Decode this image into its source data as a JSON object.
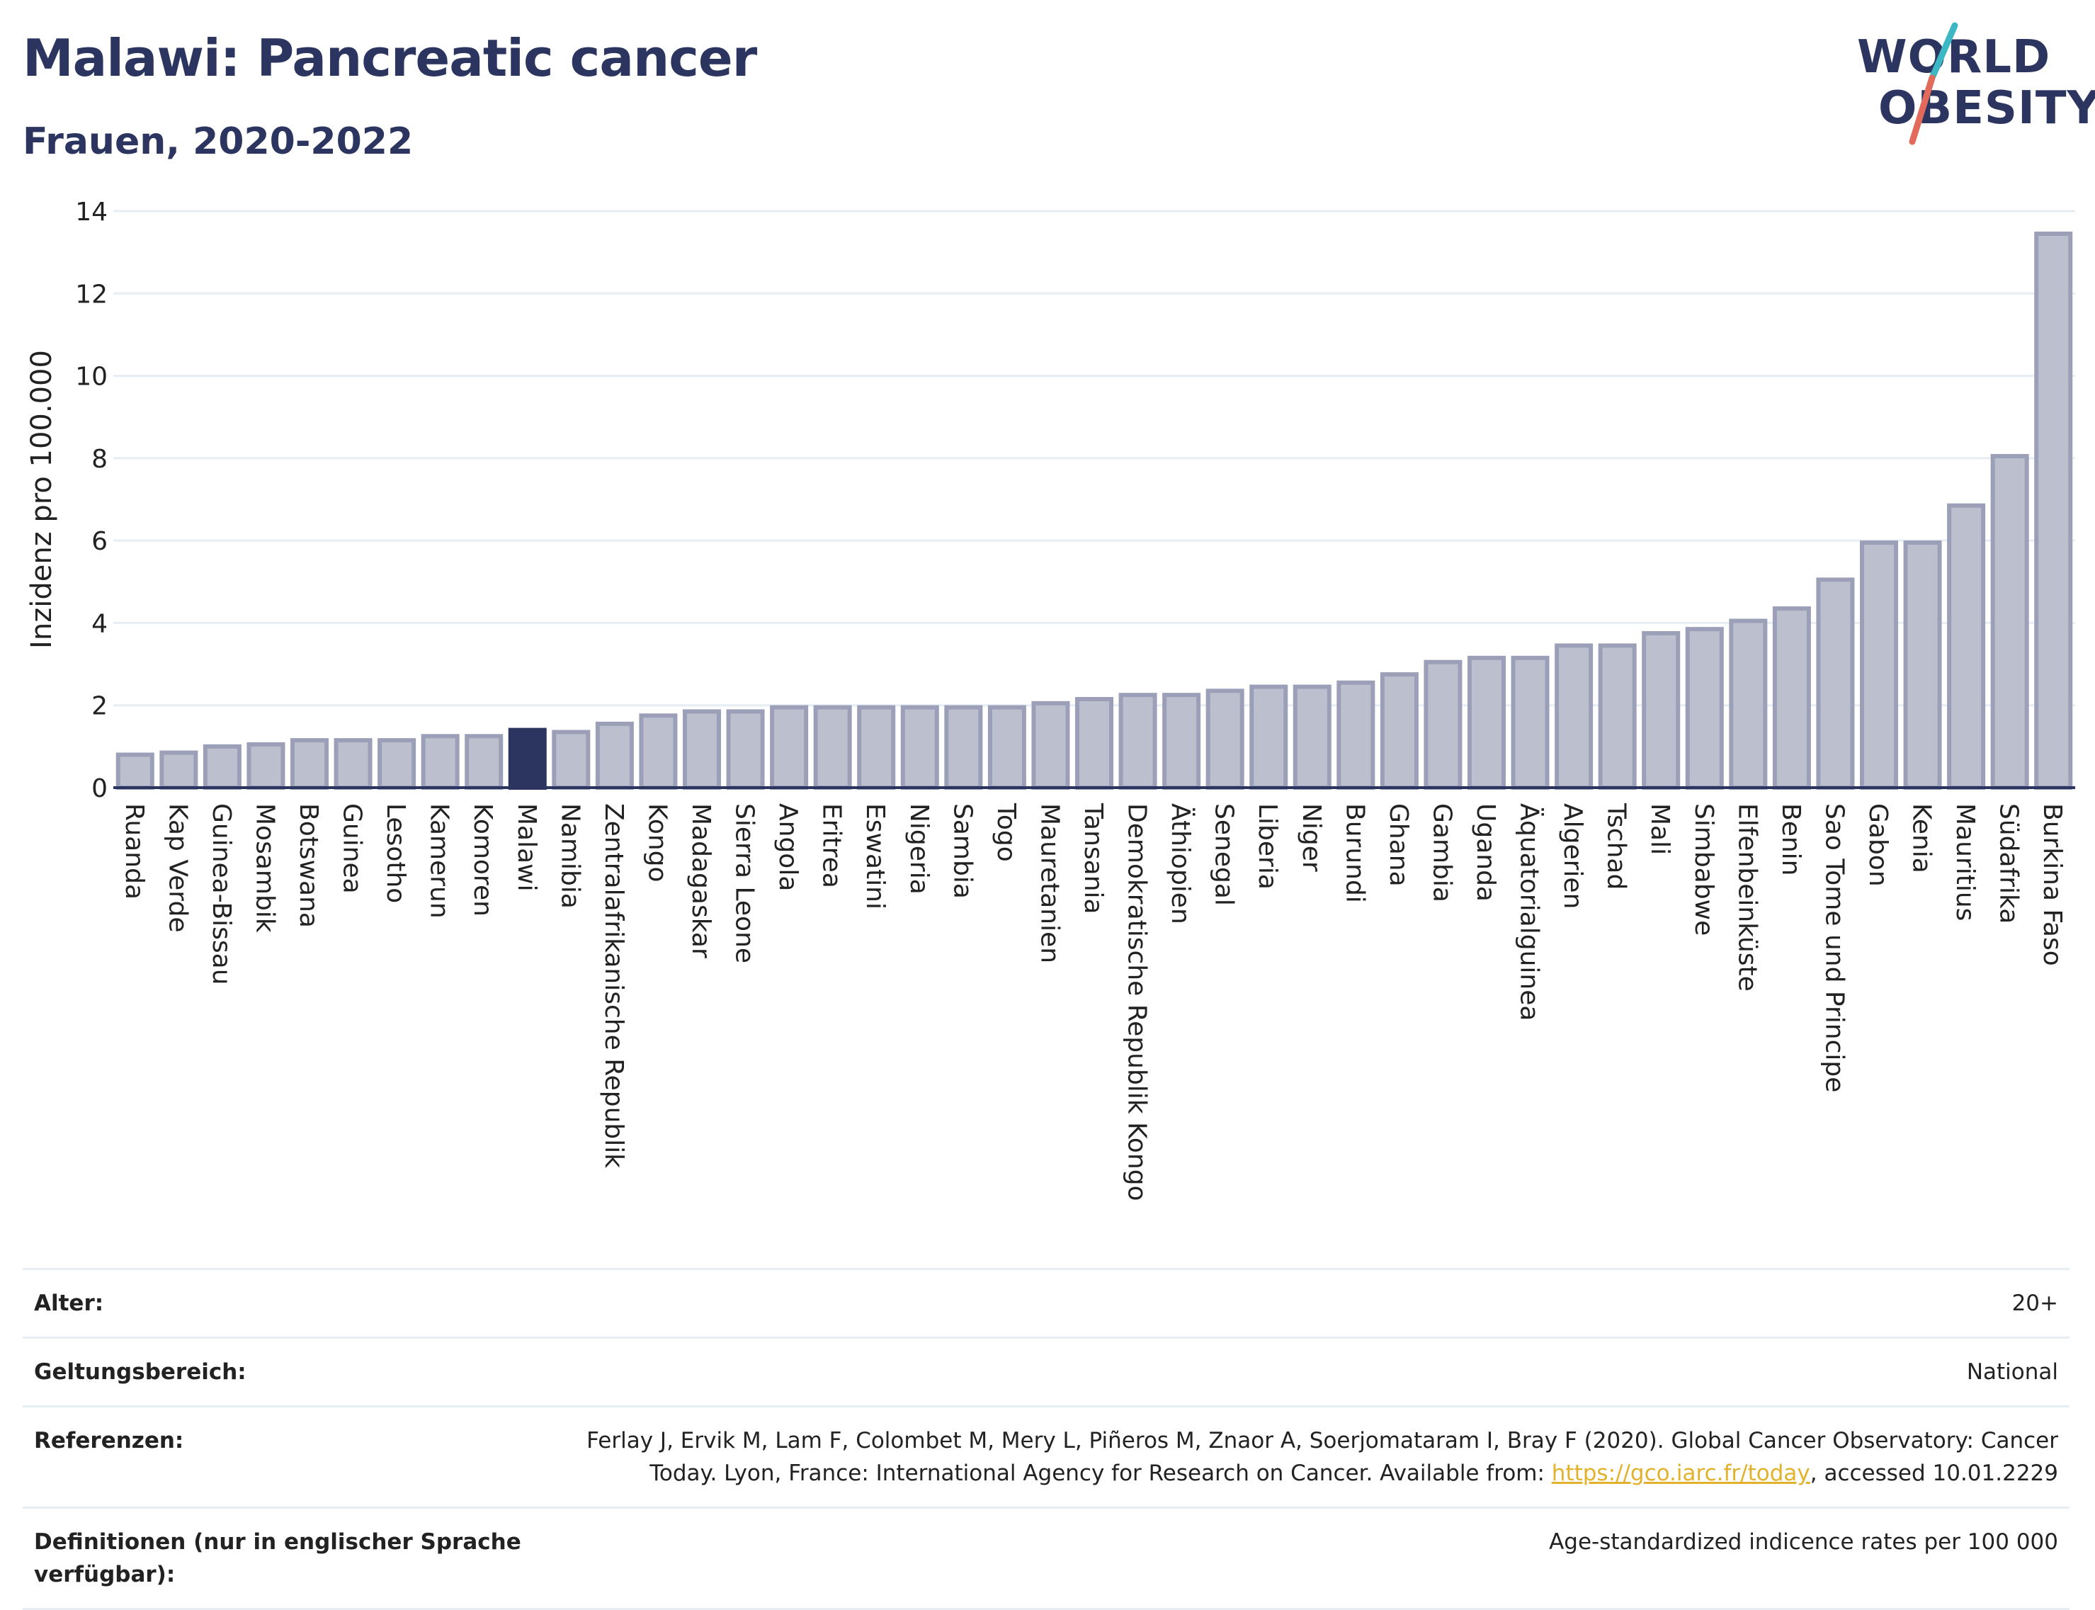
{
  "header": {
    "title": "Malawi: Pancreatic cancer",
    "subtitle": "Frauen, 2020-2022"
  },
  "logo": {
    "line1": "WORLD",
    "line2": "OBESITY"
  },
  "colors": {
    "bar": "#bcc0ce",
    "bar_border": "#9ba0b8",
    "highlight": "#2b3560",
    "grid": "#e6eef4"
  },
  "chart_data": {
    "type": "bar",
    "ylabel": "Inzidenz pro 100.000",
    "ylim": [
      0,
      14
    ],
    "yticks": [
      0,
      2,
      4,
      6,
      8,
      10,
      12,
      14
    ],
    "highlight": "Malawi",
    "grid": true,
    "categories": [
      "Ruanda",
      "Kap Verde",
      "Guinea-Bissau",
      "Mosambik",
      "Botswana",
      "Guinea",
      "Lesotho",
      "Kamerun",
      "Komoren",
      "Malawi",
      "Namibia",
      "Zentralafrikanische Republik",
      "Kongo",
      "Madagaskar",
      "Sierra Leone",
      "Angola",
      "Eritrea",
      "Eswatini",
      "Nigeria",
      "Sambia",
      "Togo",
      "Mauretanien",
      "Tansania",
      "Demokratische Republik Kongo",
      "Äthiopien",
      "Senegal",
      "Liberia",
      "Niger",
      "Burundi",
      "Ghana",
      "Gambia",
      "Uganda",
      "Äquatorialguinea",
      "Algerien",
      "Tschad",
      "Mali",
      "Simbabwe",
      "Elfenbeinküste",
      "Benin",
      "Sao Tome und Principe",
      "Gabon",
      "Kenia",
      "Mauritius",
      "Südafrika",
      "Burkina Faso"
    ],
    "values": [
      0.8,
      0.85,
      1.0,
      1.05,
      1.15,
      1.15,
      1.15,
      1.25,
      1.25,
      1.4,
      1.35,
      1.55,
      1.75,
      1.85,
      1.85,
      1.95,
      1.95,
      1.95,
      1.95,
      1.95,
      1.95,
      2.05,
      2.15,
      2.25,
      2.25,
      2.35,
      2.45,
      2.45,
      2.55,
      2.75,
      3.05,
      3.15,
      3.15,
      3.45,
      3.45,
      3.75,
      3.85,
      4.05,
      4.35,
      5.05,
      5.95,
      5.95,
      6.85,
      8.05,
      13.45
    ]
  },
  "meta": {
    "age_label": "Alter:",
    "age_value": "20+",
    "scope_label": "Geltungsbereich:",
    "scope_value": "National",
    "ref_label": "Referenzen:",
    "ref_value_1": "Ferlay J, Ervik M, Lam F, Colombet M, Mery L, Piñeros M, Znaor A, Soerjomataram I, Bray F (2020). Global Cancer Observatory: Cancer Today. Lyon, France: International Agency for Research on Cancer. Available from: ",
    "ref_link": "https://gco.iarc.fr/today",
    "ref_value_2": ", accessed 10.01.2229",
    "def_label": "Definitionen (nur in englischer Sprache verfügbar):",
    "def_value": "Age-standardized indicence rates per 100 000"
  }
}
